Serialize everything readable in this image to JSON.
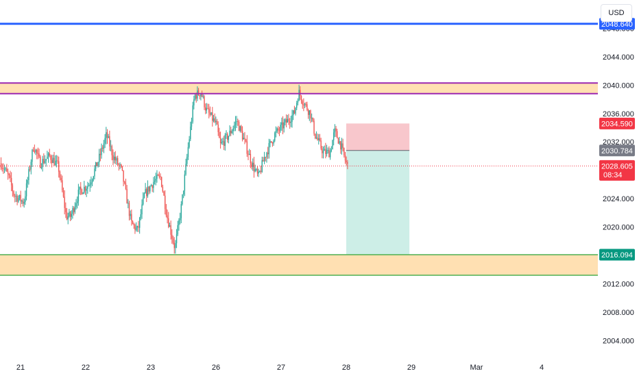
{
  "currency": {
    "label": "USD"
  },
  "colors": {
    "up": "#26a69a",
    "down": "#ef5350",
    "blue_line": "#2962ff",
    "purple_line": "#9c27b0",
    "zone_fill": "#ffe0b2",
    "green_line": "#4caf50",
    "stop_fill": "#f8c7cc",
    "target_fill": "#cdeee7",
    "entry_line": "#5d606b",
    "current_badge": "#f23645",
    "stop_badge": "#f23645",
    "entry_badge": "#787b86",
    "target_badge": "#089981",
    "blue_badge": "#2962ff"
  },
  "chart_data": {
    "type": "candlestick",
    "y_axis": {
      "min": 2002,
      "max": 2052,
      "ticks": [
        "2004.000",
        "2008.000",
        "2012.000",
        "2016.000",
        "2020.000",
        "2024.000",
        "2028.000",
        "2032.000",
        "2036.000",
        "2040.000",
        "2044.000",
        "2048.000"
      ]
    },
    "x_axis": {
      "ticks": [
        {
          "label": "21",
          "index": 0.3
        },
        {
          "label": "22",
          "index": 1.3
        },
        {
          "label": "23",
          "index": 2.3
        },
        {
          "label": "26",
          "index": 3.3
        },
        {
          "label": "27",
          "index": 4.3
        },
        {
          "label": "28",
          "index": 5.3
        },
        {
          "label": "29",
          "index": 6.3
        },
        {
          "label": "Mar",
          "index": 7.3
        },
        {
          "label": "4",
          "index": 8.3
        }
      ]
    },
    "anchors": [
      [
        0.0,
        2029.0
      ],
      [
        0.12,
        2027.0
      ],
      [
        0.2,
        2024.5
      ],
      [
        0.35,
        2023.5
      ],
      [
        0.5,
        2031.5
      ],
      [
        0.6,
        2029.0
      ],
      [
        0.75,
        2030.0
      ],
      [
        0.88,
        2028.5
      ],
      [
        1.0,
        2021.5
      ],
      [
        1.07,
        2021.5
      ],
      [
        1.2,
        2025.0
      ],
      [
        1.35,
        2026.0
      ],
      [
        1.5,
        2029.5
      ],
      [
        1.62,
        2033.0
      ],
      [
        1.72,
        2030.0
      ],
      [
        1.85,
        2028.0
      ],
      [
        2.0,
        2020.5
      ],
      [
        2.1,
        2019.5
      ],
      [
        2.2,
        2024.5
      ],
      [
        2.35,
        2026.5
      ],
      [
        2.45,
        2027.0
      ],
      [
        2.55,
        2021.5
      ],
      [
        2.67,
        2017.0
      ],
      [
        2.77,
        2023.0
      ],
      [
        2.87,
        2031.0
      ],
      [
        2.97,
        2038.5
      ],
      [
        3.07,
        2039.0
      ],
      [
        3.15,
        2036.5
      ],
      [
        3.3,
        2034.5
      ],
      [
        3.37,
        2031.5
      ],
      [
        3.5,
        2033.0
      ],
      [
        3.62,
        2035.0
      ],
      [
        3.72,
        2032.5
      ],
      [
        3.85,
        2029.0
      ],
      [
        3.95,
        2027.0
      ],
      [
        4.05,
        2030.0
      ],
      [
        4.2,
        2033.0
      ],
      [
        4.35,
        2034.5
      ],
      [
        4.5,
        2036.0
      ],
      [
        4.57,
        2039.0
      ],
      [
        4.65,
        2037.5
      ],
      [
        4.75,
        2036.0
      ],
      [
        4.82,
        2033.0
      ],
      [
        4.95,
        2030.5
      ],
      [
        5.05,
        2030.5
      ],
      [
        5.12,
        2033.5
      ],
      [
        5.22,
        2031.5
      ],
      [
        5.28,
        2029.5
      ],
      [
        5.32,
        2028.6
      ]
    ],
    "horizontal_levels": [
      {
        "name": "blue-level",
        "value": 2048.64,
        "label": "2048.640"
      },
      {
        "name": "resistance-zone-top",
        "value": 2040.3
      },
      {
        "name": "resistance-zone-bottom",
        "value": 2038.8
      },
      {
        "name": "support-zone-top",
        "value": 2016.094
      },
      {
        "name": "support-zone-bottom",
        "value": 2013.2
      }
    ],
    "position": {
      "side": "short",
      "entry": 2030.784,
      "stop": 2034.59,
      "target": 2016.094,
      "start_index": 5.3,
      "end_index": 6.27
    },
    "price_badges": [
      {
        "name": "blue-level-badge",
        "value": 2048.64,
        "label": "2048.640",
        "color_key": "blue_badge"
      },
      {
        "name": "stop-loss-badge",
        "value": 2034.59,
        "label": "2034.590",
        "color_key": "stop_badge"
      },
      {
        "name": "entry-price-badge",
        "value": 2030.784,
        "label": "2030.784",
        "color_key": "entry_badge"
      },
      {
        "name": "current-price-badge",
        "value": 2028.605,
        "label": "2028.605",
        "sublabel": "08:34",
        "color_key": "current_badge"
      },
      {
        "name": "take-profit-badge",
        "value": 2016.094,
        "label": "2016.094",
        "color_key": "target_badge"
      }
    ],
    "current_price": 2028.605
  }
}
